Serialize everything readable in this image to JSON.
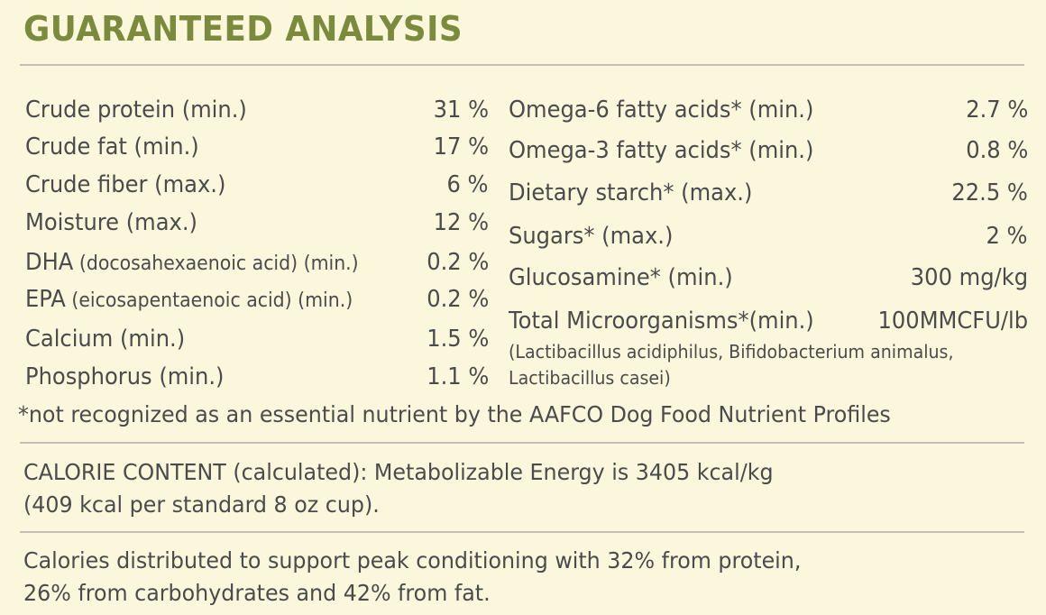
{
  "title": "GUARANTEED ANALYSIS",
  "left_rows": [
    {
      "name": "Crude protein (min.)",
      "detail": "",
      "suffix": "",
      "value": "31 %"
    },
    {
      "name": "Crude fat (min.)",
      "detail": "",
      "suffix": "",
      "value": "17 %"
    },
    {
      "name": "Crude fiber (max.)",
      "detail": "",
      "suffix": "",
      "value": "6 %"
    },
    {
      "name": "Moisture (max.)",
      "detail": "",
      "suffix": "",
      "value": "12 %"
    },
    {
      "name": "DHA",
      "detail": " (docosahexaenoic acid)",
      "suffix": " (min.)",
      "value": "0.2 %"
    },
    {
      "name": "EPA",
      "detail": " (eicosapentaenoic acid)",
      "suffix": " (min.)",
      "value": "0.2 %"
    },
    {
      "name": "Calcium (min.)",
      "detail": "",
      "suffix": "",
      "value": "1.5 %"
    },
    {
      "name": "Phosphorus (min.)",
      "detail": "",
      "suffix": "",
      "value": "1.1 %"
    }
  ],
  "right_rows": [
    {
      "name": "Omega-6 fatty acids* (min.)",
      "value": "2.7 %"
    },
    {
      "name": "Omega-3 fatty acids* (min.)",
      "value": "0.8 %"
    },
    {
      "name": "Dietary starch* (max.)",
      "value": "22.5 %"
    },
    {
      "name": "Sugars* (max.)",
      "value": "2 %"
    },
    {
      "name": "Glucosamine* (min.)",
      "value": "300 mg/kg"
    },
    {
      "name": "Total Microorganisms*(min.)",
      "value": "100MMCFU/lb"
    }
  ],
  "microorganisms_species_line1": "(Lactibacillus acidiphilus, Bifidobacterium animalus,",
  "microorganisms_species_line2": "Lactibacillus casei)",
  "footnote": "*not recognized as an essential nutrient by the AAFCO Dog Food Nutrient Profiles",
  "calorie_line1": "CALORIE CONTENT (calculated): Metabolizable Energy is 3405 kcal/kg",
  "calorie_line2": "(409 kcal per standard 8 oz cup).",
  "distribution_line1": "Calories distributed to support peak conditioning with 32% from protein,",
  "distribution_line2": "26% from carbohydrates and 42% from fat."
}
